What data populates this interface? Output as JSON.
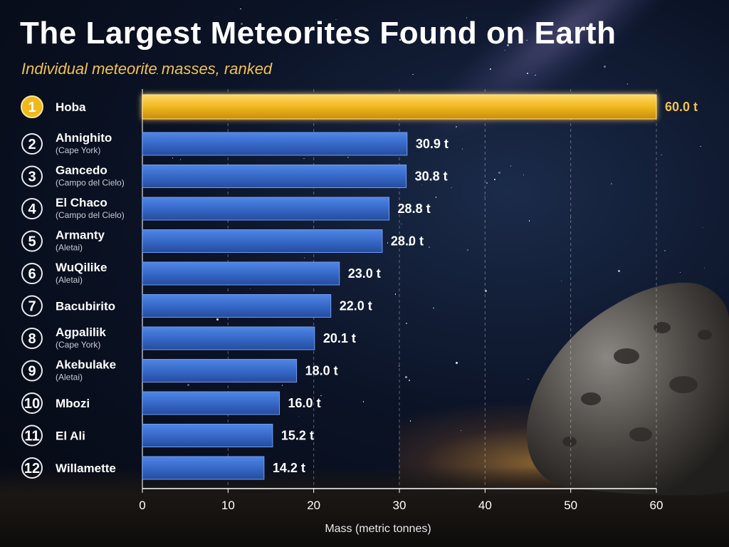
{
  "title": "The Largest Meteorites Found on Earth",
  "subtitle": "Individual meteorite masses, ranked",
  "colors": {
    "highlight": "#f0b81e",
    "bar": "#3a6fd0",
    "accent": "#f2c14a"
  },
  "chart_data": {
    "type": "bar",
    "orientation": "horizontal",
    "categories": [
      {
        "rank": "1",
        "name": "Hoba",
        "note": ""
      },
      {
        "rank": "2",
        "name": "Ahnighito",
        "note": "(Cape York)"
      },
      {
        "rank": "3",
        "name": "Gancedo",
        "note": "(Campo del Cielo)"
      },
      {
        "rank": "4",
        "name": "El Chaco",
        "note": "(Campo del Cielo)"
      },
      {
        "rank": "5",
        "name": "Armanty",
        "note": "(Aletai)"
      },
      {
        "rank": "6",
        "name": "WuQilike",
        "note": "(Aletai)"
      },
      {
        "rank": "7",
        "name": "Bacubirito",
        "note": ""
      },
      {
        "rank": "8",
        "name": "Agpalilik",
        "note": "(Cape York)"
      },
      {
        "rank": "9",
        "name": "Akebulake",
        "note": "(Aletai)"
      },
      {
        "rank": "10",
        "name": "Mbozi",
        "note": ""
      },
      {
        "rank": "11",
        "name": "El Ali",
        "note": ""
      },
      {
        "rank": "12",
        "name": "Willamette",
        "note": ""
      }
    ],
    "values": [
      60.0,
      30.9,
      30.8,
      28.8,
      28.0,
      23.0,
      22.0,
      20.1,
      18.0,
      16.0,
      15.2,
      14.2
    ],
    "value_labels": [
      "60.0 t",
      "30.9 t",
      "30.8 t",
      "28.8 t",
      "28.0 t",
      "23.0 t",
      "22.0 t",
      "20.1 t",
      "18.0 t",
      "16.0 t",
      "15.2 t",
      "14.2 t"
    ],
    "xlabel": "Mass (metric tonnes)",
    "ylabel": "",
    "xlim": [
      0,
      60
    ],
    "xticks": [
      "0",
      "10",
      "20",
      "30",
      "40",
      "50",
      "60"
    ],
    "grid": "vertical dashed",
    "highlight_index": 0
  }
}
